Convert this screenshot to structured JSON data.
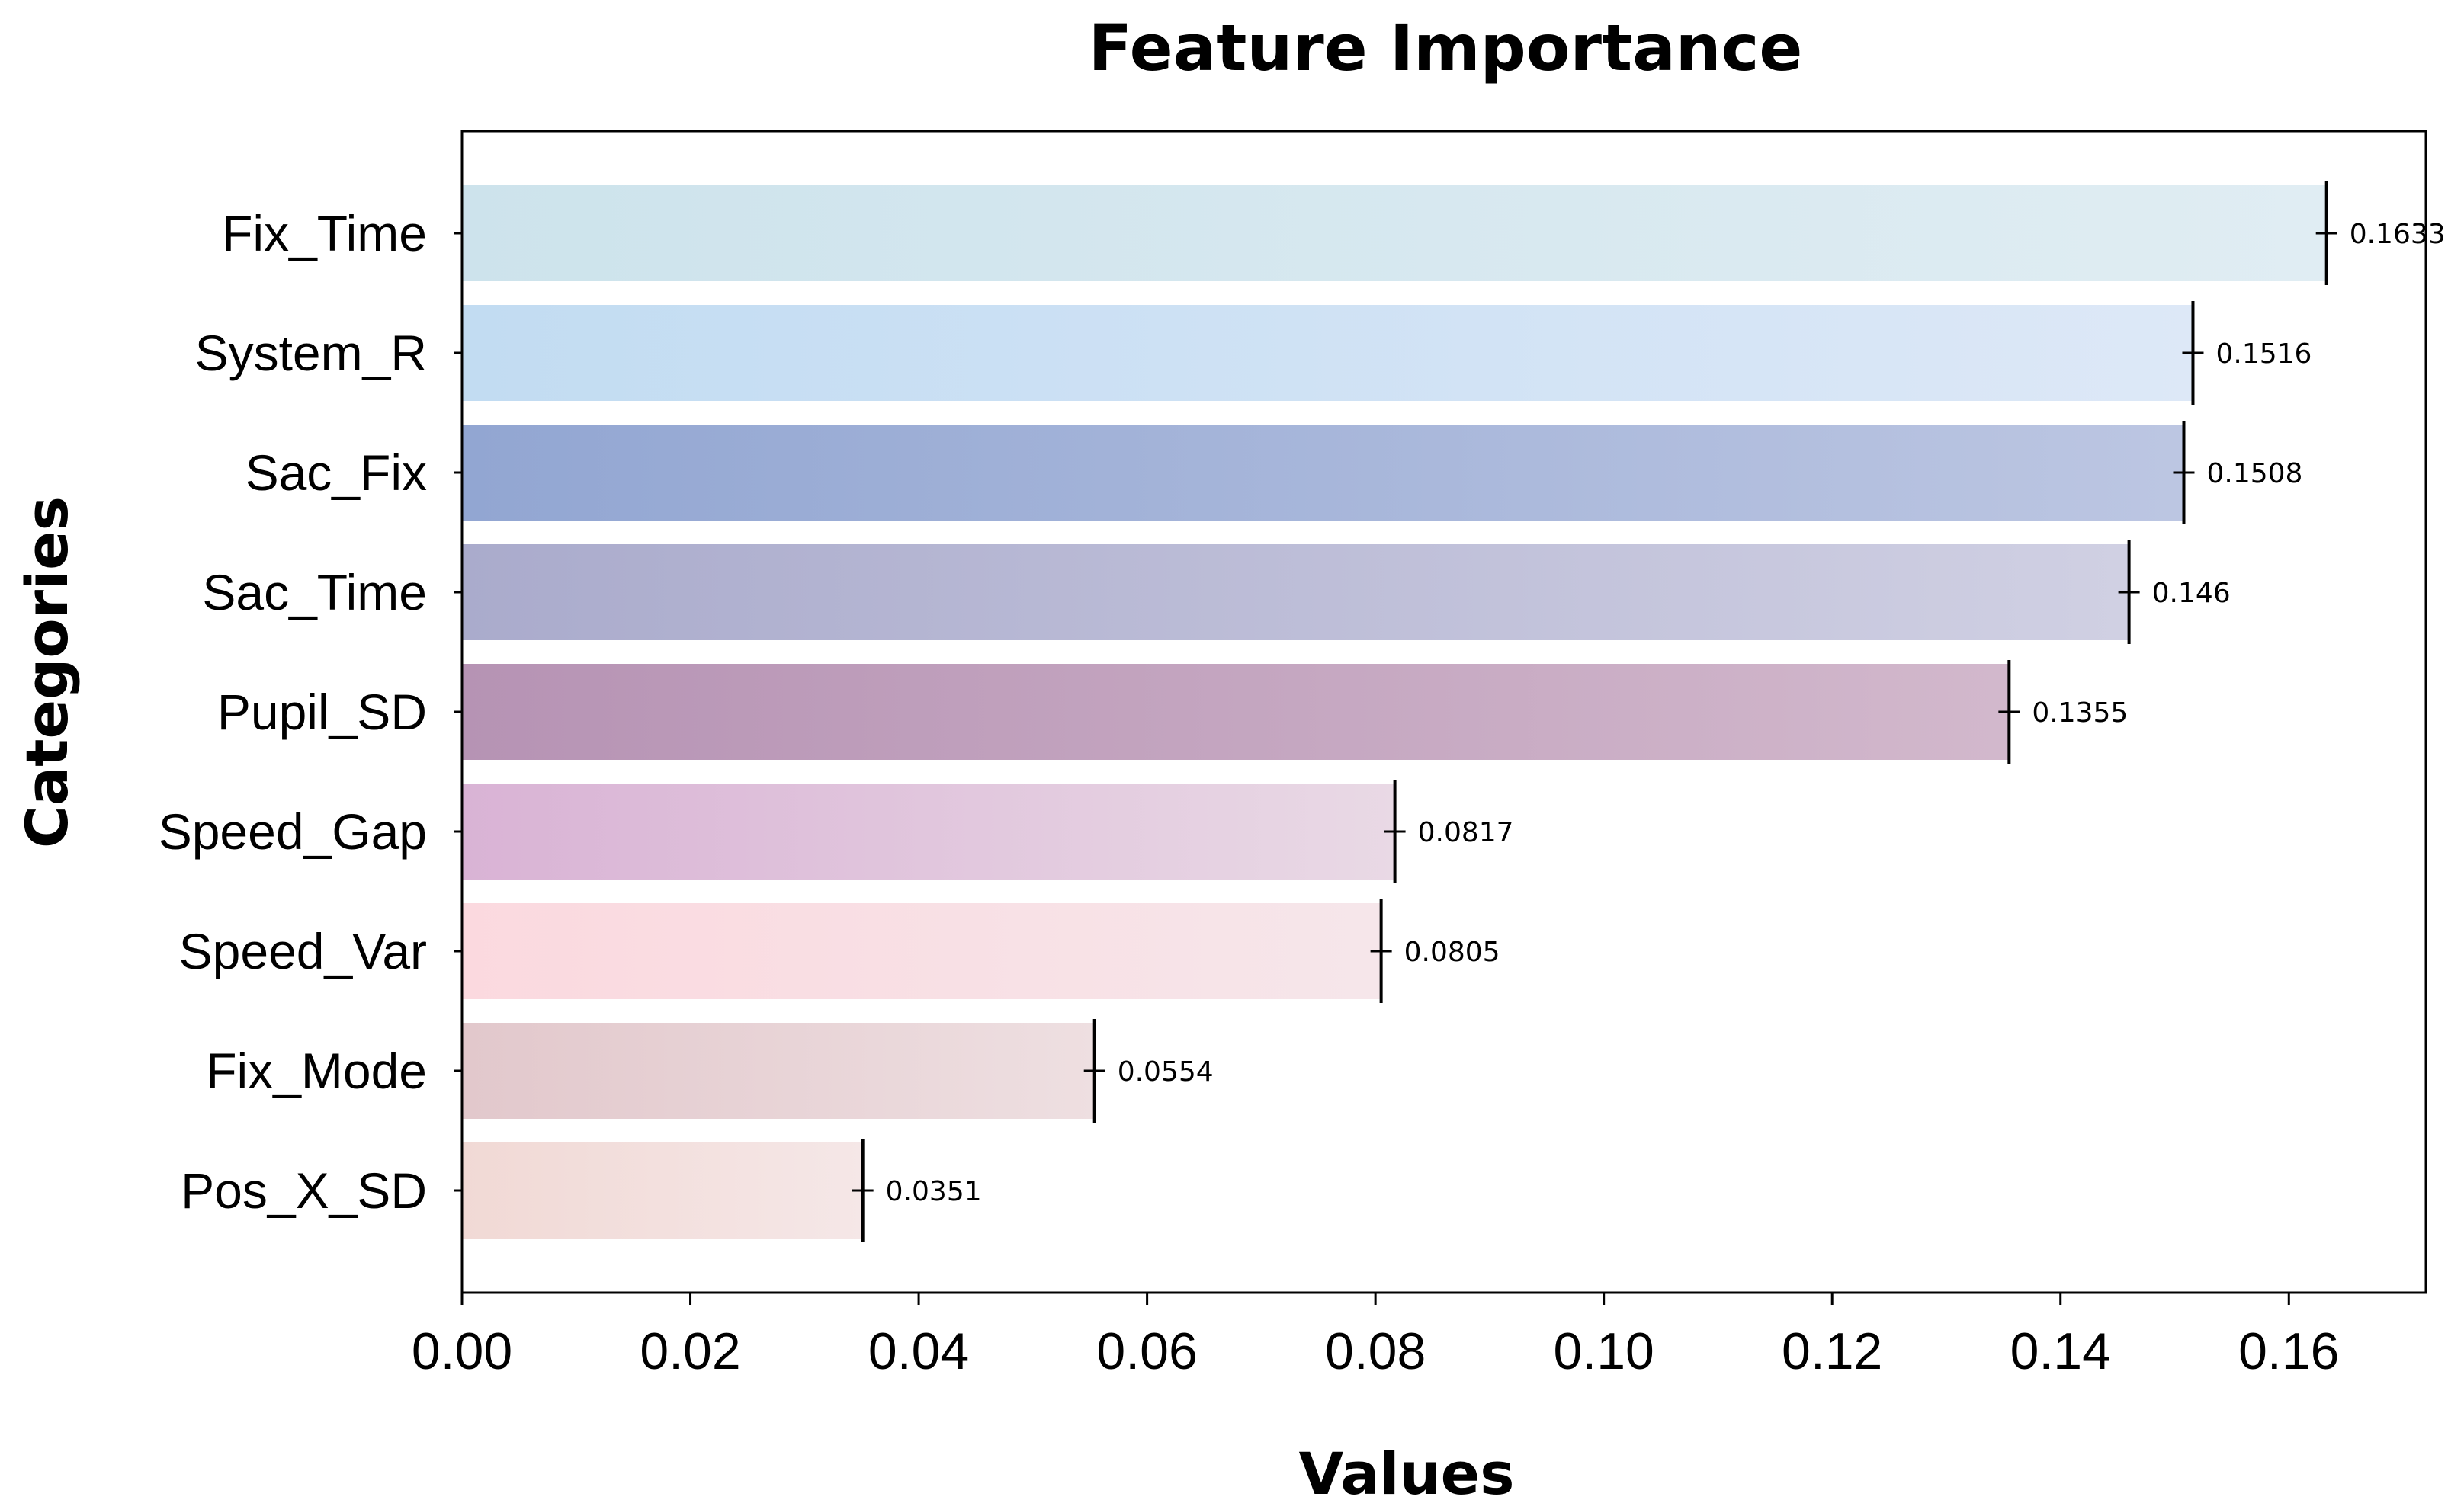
{
  "chart_data": {
    "type": "bar",
    "orientation": "horizontal",
    "title": "Feature Importance",
    "xlabel": "Values",
    "ylabel": "Categories",
    "xlim": [
      0,
      0.172
    ],
    "xticks": [
      "0.00",
      "0.02",
      "0.04",
      "0.06",
      "0.08",
      "0.10",
      "0.12",
      "0.14",
      "0.16"
    ],
    "grid": false,
    "legend": "none",
    "categories": [
      "Fix_Time",
      "System_R",
      "Sac_Fix",
      "Sac_Time",
      "Pupil_SD",
      "Speed_Gap",
      "Speed_Var",
      "Fix_Mode",
      "Pos_X_SD"
    ],
    "values": [
      0.1633,
      0.1516,
      0.1508,
      0.146,
      0.1355,
      0.0817,
      0.0805,
      0.0554,
      0.0351
    ],
    "value_labels": [
      "0.1633",
      "0.1516",
      "0.1508",
      "0.146",
      "0.1355",
      "0.0817",
      "0.0805",
      "0.0554",
      "0.0351"
    ],
    "error_bars": "present",
    "bar_colors": [
      [
        "#cde3ec",
        "#e0edf3"
      ],
      [
        "#c2dcf2",
        "#dde8f7"
      ],
      [
        "#92a6d2",
        "#bcc6e2"
      ],
      [
        "#aaabcc",
        "#d0d0e3"
      ],
      [
        "#b693b4",
        "#d2b8cc"
      ],
      [
        "#d9b3d5",
        "#e9d9e5"
      ],
      [
        "#fbd9df",
        "#f6e6ea"
      ],
      [
        "#e2c8cc",
        "#eedfe1"
      ],
      [
        "#f1d9d5",
        "#f5e7e7"
      ]
    ]
  }
}
